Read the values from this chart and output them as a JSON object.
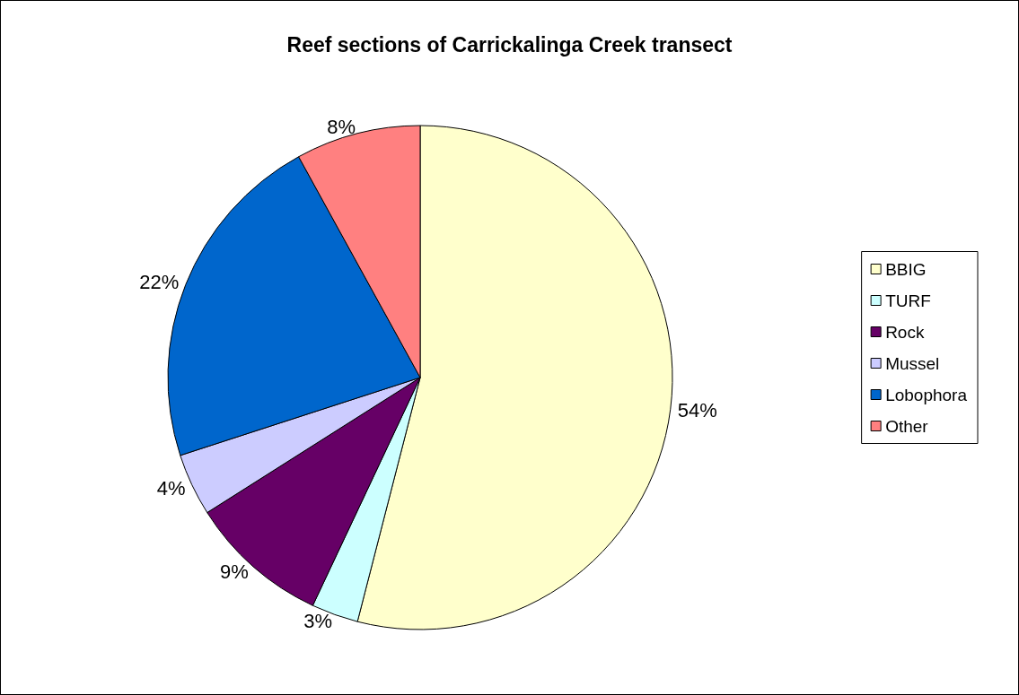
{
  "chart_data": {
    "type": "pie",
    "title": "Reef sections of Carrickalinga Creek transect",
    "categories": [
      "BBIG",
      "TURF",
      "Rock",
      "Mussel",
      "Lobophora",
      "Other"
    ],
    "values": [
      54,
      3,
      9,
      4,
      22,
      8
    ],
    "value_labels": [
      "54%",
      "3%",
      "9%",
      "4%",
      "22%",
      "8%"
    ],
    "colors": [
      "#ffffcc",
      "#ccffff",
      "#660066",
      "#ccccff",
      "#0066cc",
      "#ff8080"
    ],
    "legend": "right"
  }
}
